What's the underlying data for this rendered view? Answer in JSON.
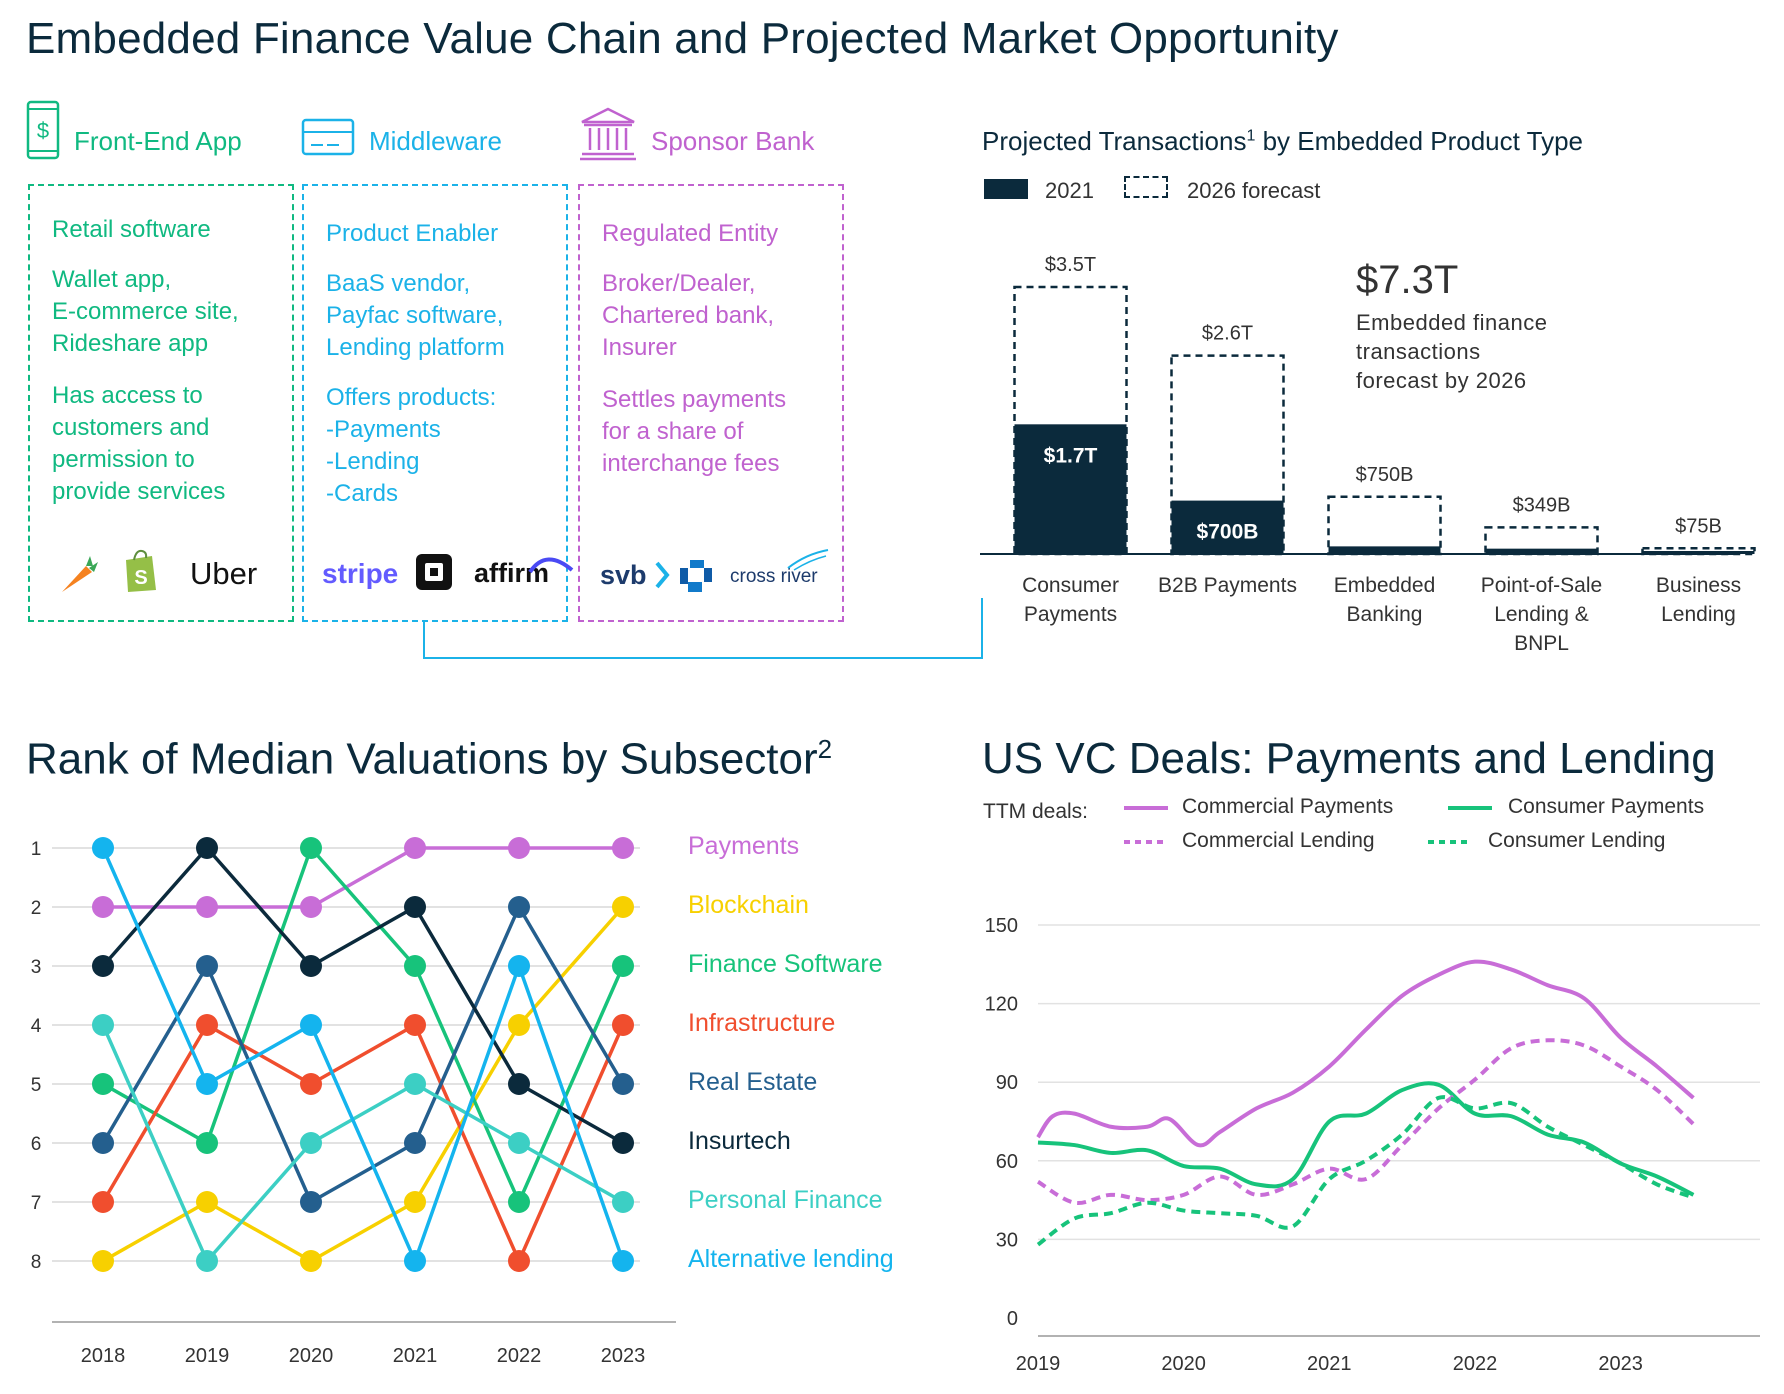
{
  "page_title": "Embedded Finance Value Chain and Projected Market Opportunity",
  "value_chain": {
    "front_end": {
      "header": "Front-End App",
      "role": "Retail software",
      "examples": "Wallet app,\nE-commerce site,\nRideshare app",
      "desc": "Has access to\ncustomers and\npermission to\nprovide services",
      "logos": [
        "carrot-logo",
        "shopify-bag-logo"
      ],
      "logo_text_uber": "Uber"
    },
    "middleware": {
      "header": "Middleware",
      "role": "Product Enabler",
      "examples": "BaaS vendor,\nPayfac software,\nLending platform",
      "desc": "Offers products:\n-Payments\n-Lending\n-Cards",
      "logo_text_stripe": "stripe",
      "logo_text_affirm": "affirm"
    },
    "sponsor_bank": {
      "header": "Sponsor Bank",
      "role": "Regulated Entity",
      "examples": "Broker/Dealer,\nChartered bank,\nInsurer",
      "desc": "Settles payments\nfor a share of\ninterchange fees",
      "logo_text_svb": "svb",
      "logo_text_crossriver": "cross river"
    }
  },
  "colors": {
    "green": "#10b981",
    "blue": "#1bb2e8",
    "pink": "#c062cf",
    "navy": "#0b2a3c"
  },
  "bar_chart": {
    "title": "Projected Transactions",
    "title_sup": "1",
    "title_rest": " by Embedded Product Type",
    "legend_2021": "2021",
    "legend_2026": "2026 forecast",
    "callout_value": "$7.3T",
    "callout_text": "Embedded finance\ntransactions\nforecast by 2026"
  },
  "rank_chart": {
    "title": "Rank of Median Valuations by Subsector",
    "title_sup": "2"
  },
  "vc_chart": {
    "title": "US VC Deals: Payments and Lending",
    "legend_prefix": "TTM deals:"
  },
  "chart_data": [
    {
      "type": "bar",
      "categories": [
        "Consumer\nPayments",
        "B2B Payments",
        "Embedded\nBanking",
        "Point-of-Sale\nLending &\nBNPL",
        "Business\nLending"
      ],
      "series": [
        {
          "name": "2021",
          "values": [
            1.7,
            0.7,
            0.1,
            0.07,
            0.02
          ],
          "labels": [
            "$1.7T",
            "$700B",
            "",
            "",
            ""
          ]
        },
        {
          "name": "2026 forecast",
          "values": [
            3.5,
            2.6,
            0.75,
            0.349,
            0.075
          ],
          "labels": [
            "$3.5T",
            "$2.6T",
            "$750B",
            "$349B",
            "$75B"
          ]
        }
      ],
      "unit": "$T"
    },
    {
      "type": "line",
      "x": [
        "2018",
        "2019",
        "2020",
        "2021",
        "2022",
        "2023"
      ],
      "y_ticks": [
        "1",
        "2",
        "3",
        "4",
        "5",
        "6",
        "7",
        "8"
      ],
      "y_inverted": true,
      "series": [
        {
          "name": "Payments",
          "color": "#c86dd7",
          "values": [
            2,
            2,
            2,
            1,
            1,
            1
          ]
        },
        {
          "name": "Blockchain",
          "color": "#f7d000",
          "values": [
            8,
            7,
            8,
            7,
            4,
            2
          ]
        },
        {
          "name": "Finance Software",
          "color": "#17c37b",
          "values": [
            5,
            6,
            1,
            3,
            7,
            3
          ]
        },
        {
          "name": "Infrastructure",
          "color": "#f04e2e",
          "values": [
            7,
            4,
            5,
            4,
            8,
            4
          ]
        },
        {
          "name": "Real Estate",
          "color": "#245f8e",
          "values": [
            6,
            3,
            7,
            6,
            2,
            5
          ]
        },
        {
          "name": "Insurtech",
          "color": "#0b2a3c",
          "values": [
            3,
            1,
            3,
            2,
            5,
            6
          ]
        },
        {
          "name": "Personal Finance",
          "color": "#3ccfc4",
          "values": [
            4,
            8,
            6,
            5,
            6,
            7
          ]
        },
        {
          "name": "Alternative lending",
          "color": "#14b4ee",
          "values": [
            1,
            5,
            4,
            8,
            3,
            8
          ]
        }
      ]
    },
    {
      "type": "line",
      "x_ticks": [
        "2019",
        "2020",
        "2021",
        "2022",
        "2023"
      ],
      "y_ticks": [
        "0",
        "30",
        "60",
        "90",
        "120",
        "150"
      ],
      "ylim": [
        0,
        150
      ],
      "xlim": [
        2019,
        2023.6
      ],
      "series": [
        {
          "name": "Commercial Payments",
          "color": "#c86dd7",
          "dash": false,
          "x": [
            2019,
            2019.1,
            2019.25,
            2019.5,
            2019.75,
            2019.9,
            2020.1,
            2020.25,
            2020.5,
            2020.75,
            2021,
            2021.25,
            2021.5,
            2021.75,
            2022,
            2022.25,
            2022.5,
            2022.75,
            2023,
            2023.25,
            2023.5
          ],
          "y": [
            69,
            77,
            78,
            73,
            73,
            76,
            66,
            71,
            80,
            86,
            96,
            110,
            123,
            131,
            136,
            133,
            127,
            122,
            107,
            96,
            84
          ]
        },
        {
          "name": "Consumer Payments",
          "color": "#17c37b",
          "dash": false,
          "x": [
            2019,
            2019.25,
            2019.5,
            2019.75,
            2020,
            2020.25,
            2020.5,
            2020.75,
            2021,
            2021.25,
            2021.5,
            2021.75,
            2022,
            2022.25,
            2022.5,
            2022.75,
            2023,
            2023.25,
            2023.5
          ],
          "y": [
            67,
            66,
            63,
            64,
            58,
            57,
            51,
            53,
            75,
            78,
            87,
            89,
            78,
            77,
            70,
            67,
            59,
            54,
            47
          ]
        },
        {
          "name": "Commercial Lending",
          "color": "#c86dd7",
          "dash": true,
          "x": [
            2019,
            2019.25,
            2019.5,
            2019.75,
            2020,
            2020.25,
            2020.5,
            2020.75,
            2021,
            2021.25,
            2021.5,
            2021.75,
            2022,
            2022.25,
            2022.5,
            2022.75,
            2023,
            2023.25,
            2023.5
          ],
          "y": [
            52,
            44,
            47,
            45,
            47,
            54,
            47,
            51,
            57,
            53,
            66,
            80,
            91,
            103,
            106,
            104,
            96,
            87,
            74
          ]
        },
        {
          "name": "Consumer Lending",
          "color": "#17c37b",
          "dash": true,
          "x": [
            2019,
            2019.25,
            2019.5,
            2019.75,
            2020,
            2020.25,
            2020.5,
            2020.75,
            2021,
            2021.25,
            2021.5,
            2021.75,
            2022,
            2022.25,
            2022.5,
            2022.75,
            2023,
            2023.25,
            2023.5
          ],
          "y": [
            28,
            38,
            40,
            44,
            41,
            40,
            39,
            35,
            53,
            60,
            70,
            84,
            80,
            82,
            73,
            66,
            59,
            51,
            46
          ]
        }
      ]
    }
  ]
}
